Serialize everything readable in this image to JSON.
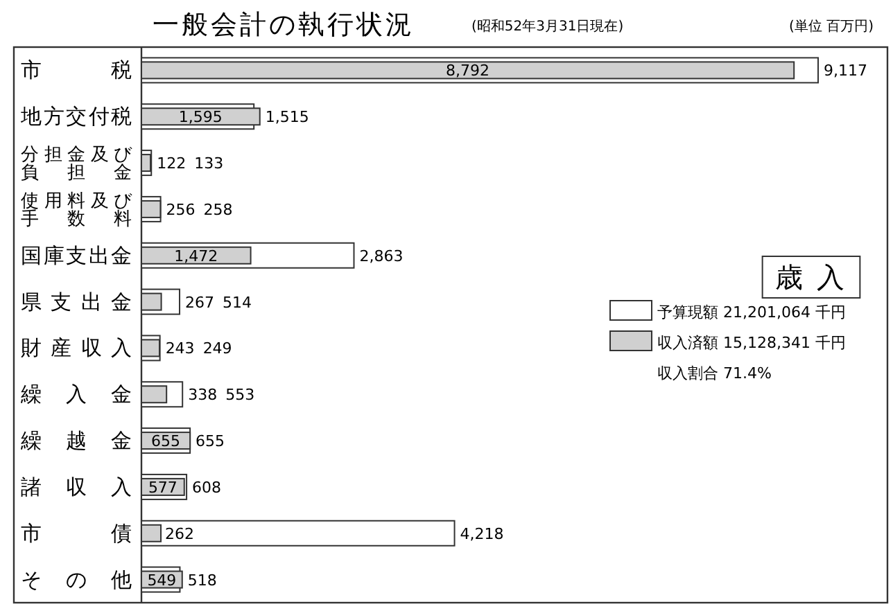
{
  "chart_data": {
    "type": "bar",
    "orientation": "horizontal",
    "title": "一般会計の執行状況",
    "subtitle": "(昭和52年3月31日現在)",
    "annotations": [
      "(単位 百万円)",
      "収入割合 71.4%"
    ],
    "legend_title": "歳 入",
    "legend": "right",
    "categories": [
      "市税",
      "地方交付税",
      "分担金及び負担金",
      "使用料及び手数料",
      "国庫支出金",
      "県支出金",
      "財産収入",
      "繰入金",
      "繰越金",
      "諸収入",
      "市債",
      "その他"
    ],
    "series": [
      {
        "name": "予算現額 21,201,064 千円",
        "color": "#ffffff",
        "values": [
          9117,
          1515,
          133,
          258,
          2863,
          514,
          249,
          553,
          655,
          608,
          4218,
          518
        ],
        "value_labels": [
          "9,117",
          "1,515",
          "133",
          "258",
          "2,863",
          "514",
          "249",
          "553",
          "655",
          "608",
          "4,218",
          "518"
        ]
      },
      {
        "name": "収入済額 15,128,341 千円",
        "color": "#d0d0d0",
        "values": [
          8792,
          1595,
          122,
          256,
          1472,
          267,
          243,
          338,
          655,
          577,
          262,
          549
        ],
        "value_labels": [
          "8,792",
          "1,595",
          "122",
          "256",
          "1,472",
          "267",
          "243",
          "338",
          "655",
          "577",
          "262",
          "549"
        ]
      }
    ]
  }
}
